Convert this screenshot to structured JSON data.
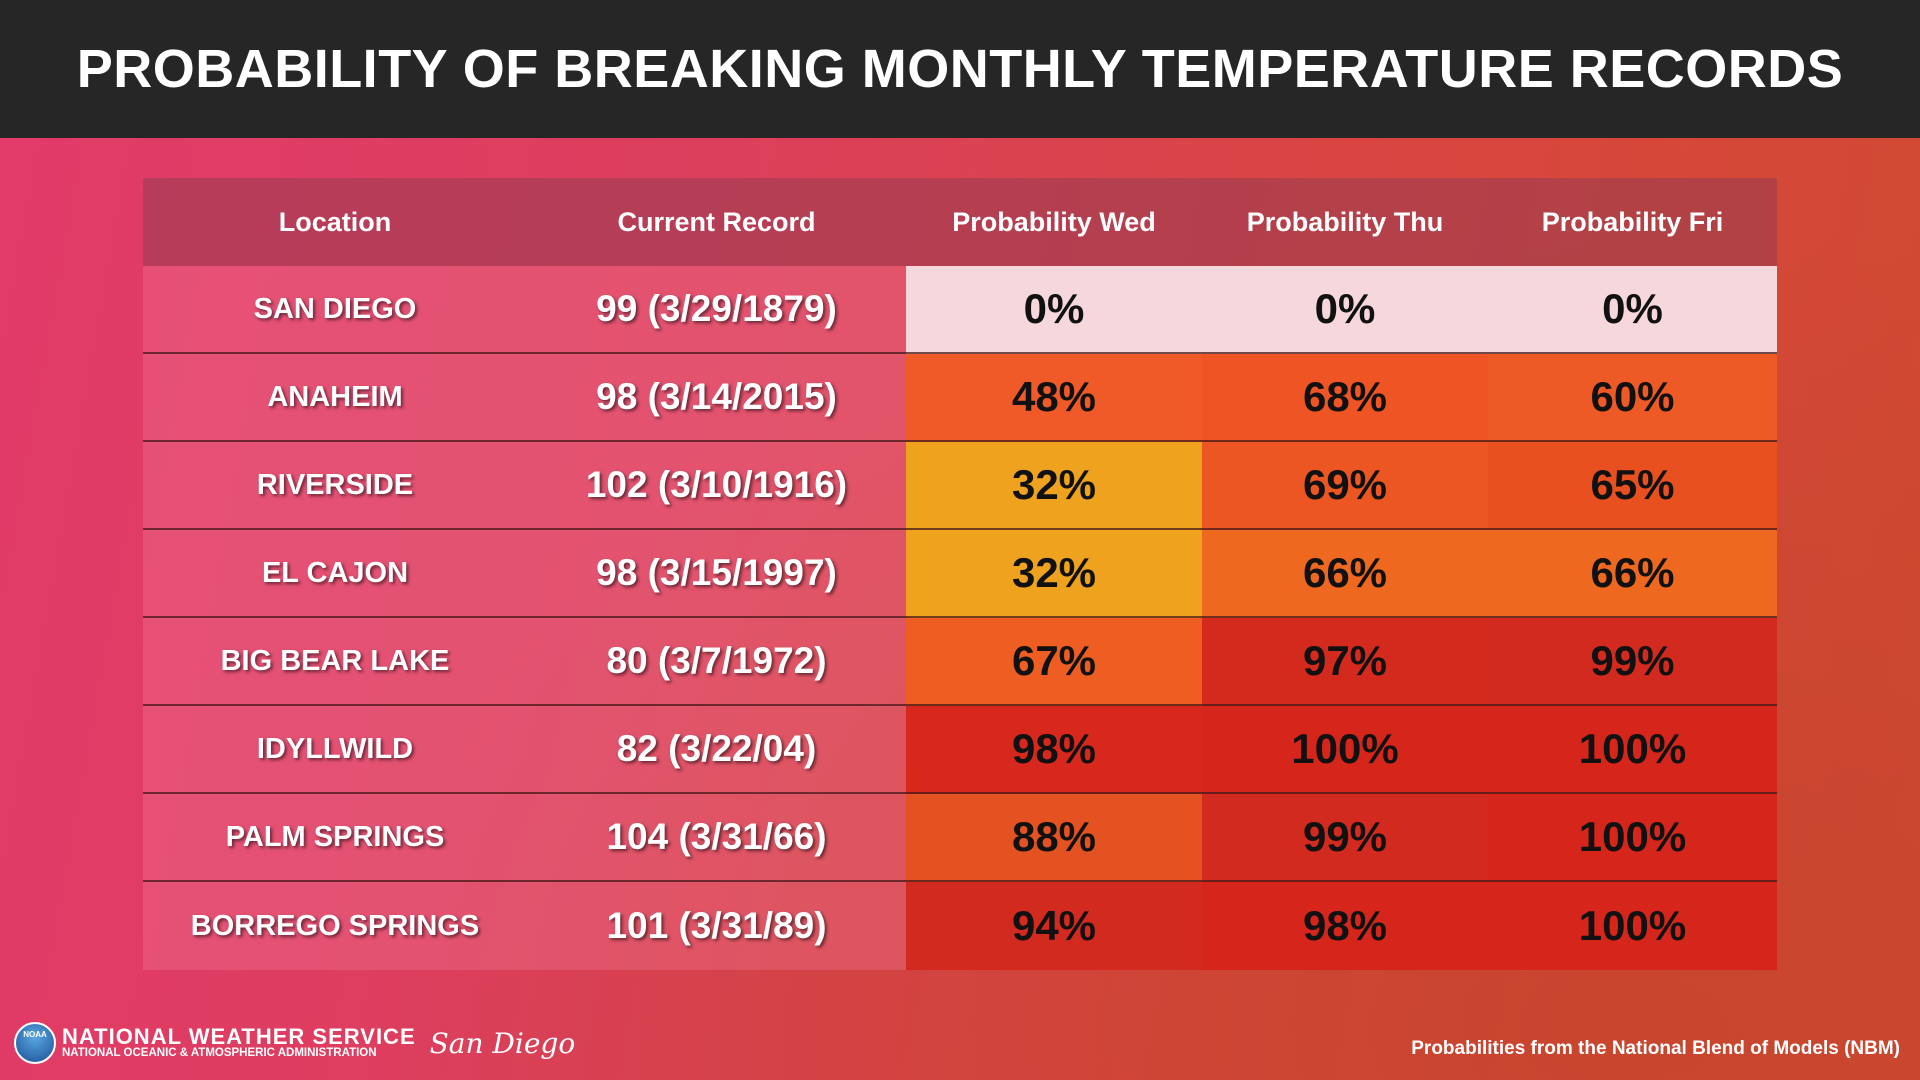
{
  "header": {
    "title": "PROBABILITY OF BREAKING MONTHLY TEMPERATURE RECORDS"
  },
  "table": {
    "columns": [
      "Location",
      "Current Record",
      "Probability Wed",
      "Probability Thu",
      "Probability Fri"
    ],
    "rows": [
      [
        "SAN DIEGO",
        "99 (3/29/1879)",
        "0%",
        "0%",
        "0%"
      ],
      [
        "ANAHEIM",
        "98 (3/14/2015)",
        "48%",
        "68%",
        "60%"
      ],
      [
        "RIVERSIDE",
        "102 (3/10/1916)",
        "32%",
        "69%",
        "65%"
      ],
      [
        "EL CAJON",
        "98 (3/15/1997)",
        "32%",
        "66%",
        "66%"
      ],
      [
        "BIG BEAR LAKE",
        "80 (3/7/1972)",
        "67%",
        "97%",
        "99%"
      ],
      [
        "IDYLLWILD",
        "82 (3/22/04)",
        "98%",
        "100%",
        "100%"
      ],
      [
        "PALM SPRINGS",
        "104 (3/31/66)",
        "88%",
        "99%",
        "100%"
      ],
      [
        "BORREGO SPRINGS",
        "101 (3/31/89)",
        "94%",
        "98%",
        "100%"
      ]
    ]
  },
  "footer": {
    "logo": "NOAA",
    "agency": "NATIONAL WEATHER SERVICE",
    "parent": "NATIONAL OCEANIC & ATMOSPHERIC ADMINISTRATION",
    "office": "San Diego",
    "source": "Probabilities from the National Blend of Models (NBM)"
  }
}
